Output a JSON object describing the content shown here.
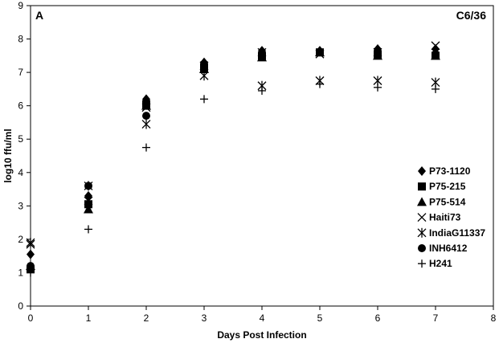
{
  "chart_data": {
    "type": "scatter",
    "panel_label": "A",
    "cell_label": "C6/36",
    "xlabel": "Days Post Infection",
    "ylabel": "log10 ffu/ml",
    "xlim": [
      0,
      8
    ],
    "ylim": [
      0,
      9
    ],
    "x_ticks": [
      0,
      1,
      2,
      3,
      4,
      5,
      6,
      7,
      8
    ],
    "y_ticks": [
      0,
      1,
      2,
      3,
      4,
      5,
      6,
      7,
      8,
      9
    ],
    "grid": false,
    "legend_position": "right",
    "x": [
      0,
      1,
      2,
      3,
      4,
      5,
      6,
      7
    ],
    "series": [
      {
        "name": "P73-1120",
        "marker": "diamond",
        "values": [
          1.55,
          3.3,
          6.2,
          7.3,
          7.65,
          7.65,
          7.7,
          7.7
        ]
      },
      {
        "name": "P75-215",
        "marker": "square",
        "values": [
          1.1,
          3.05,
          6.05,
          7.15,
          7.5,
          7.6,
          7.55,
          7.5
        ]
      },
      {
        "name": "P75-514",
        "marker": "triangle",
        "values": [
          1.2,
          2.9,
          6.0,
          7.1,
          7.45,
          7.6,
          7.5,
          7.5
        ]
      },
      {
        "name": "Haiti73",
        "marker": "x",
        "values": [
          1.85,
          3.15,
          5.95,
          7.2,
          7.6,
          7.55,
          7.6,
          7.8
        ]
      },
      {
        "name": "IndiaG11337",
        "marker": "star",
        "values": [
          1.9,
          3.6,
          5.45,
          6.9,
          6.6,
          6.75,
          6.75,
          6.7
        ]
      },
      {
        "name": "INH6412",
        "marker": "circle",
        "values": [
          1.2,
          3.6,
          5.7,
          7.25,
          7.5,
          7.6,
          7.6,
          7.55
        ]
      },
      {
        "name": "H241",
        "marker": "plus",
        "values": [
          1.0,
          2.3,
          4.75,
          6.2,
          6.45,
          6.65,
          6.55,
          6.5
        ]
      }
    ]
  }
}
